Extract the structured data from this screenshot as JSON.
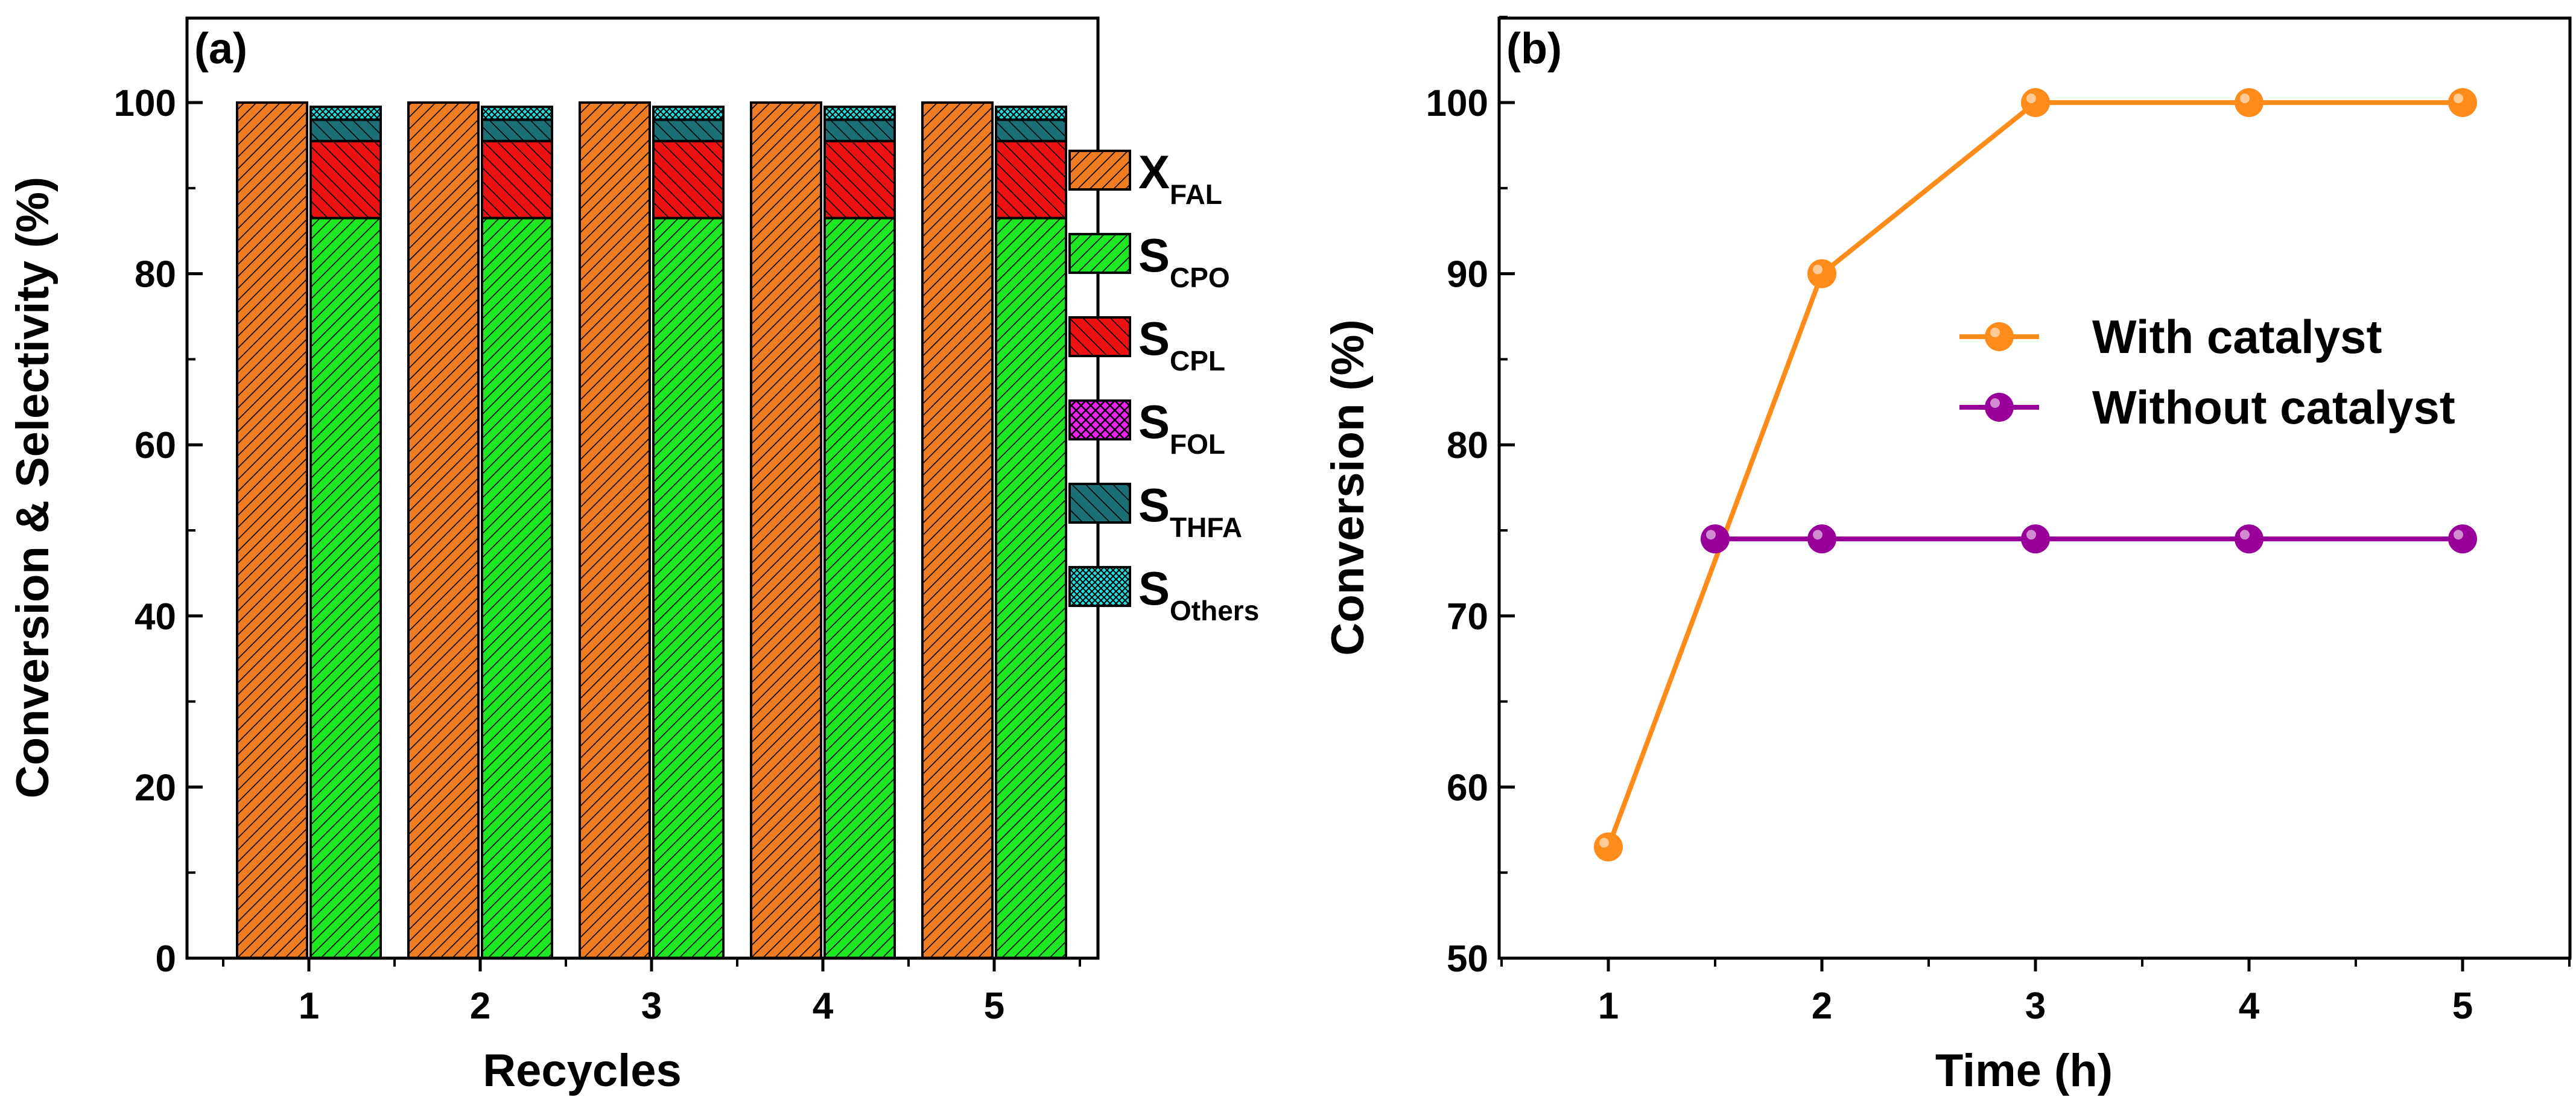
{
  "chart_data": [
    {
      "panel_label": "(a)",
      "type": "bar",
      "xlabel": "Recycles",
      "ylabel": "Conversion & Selectivity (%)",
      "ylim": [
        0,
        110
      ],
      "yticks": [
        "0",
        "20",
        "40",
        "60",
        "80",
        "100"
      ],
      "categories": [
        "1",
        "2",
        "3",
        "4",
        "5"
      ],
      "conversion": {
        "name": "X",
        "sub": "FAL",
        "values": [
          100,
          100,
          100,
          100,
          100
        ]
      },
      "selectivity": [
        {
          "name": "S",
          "sub": "CPO",
          "values": [
            86.5,
            86.5,
            86.5,
            86.5,
            86.5
          ]
        },
        {
          "name": "S",
          "sub": "CPL",
          "values": [
            9.0,
            9.0,
            9.0,
            9.0,
            9.0
          ]
        },
        {
          "name": "S",
          "sub": "FOL",
          "values": [
            0,
            0,
            0,
            0,
            0
          ]
        },
        {
          "name": "S",
          "sub": "THFA",
          "values": [
            2.5,
            2.5,
            2.5,
            2.5,
            2.5
          ]
        },
        {
          "name": "S",
          "sub": "Others",
          "values": [
            1.5,
            1.5,
            1.5,
            1.5,
            1.5
          ]
        }
      ],
      "colors": {
        "X_FAL": "#f07c22",
        "S_CPO": "#1ee822",
        "S_CPL": "#ee1111",
        "S_FOL": "#ee22ee",
        "S_THFA": "#1b6f76",
        "S_Others": "#22dddd"
      },
      "legend_position": "right"
    },
    {
      "panel_label": "(b)",
      "type": "line",
      "xlabel": "Time (h)",
      "ylabel": "Conversion (%)",
      "xlim": [
        0.5,
        5.6
      ],
      "ylim": [
        50,
        105
      ],
      "xticks": [
        "1",
        "2",
        "3",
        "4",
        "5"
      ],
      "yticks": [
        "50",
        "60",
        "70",
        "80",
        "90",
        "100"
      ],
      "series": [
        {
          "name": "With catalyst",
          "x": [
            1,
            2,
            3,
            4,
            5
          ],
          "y": [
            56.5,
            90,
            100,
            100,
            100
          ],
          "color": "#ff8c1a"
        },
        {
          "name": "Without catalyst",
          "x": [
            1.5,
            2,
            3,
            4,
            5
          ],
          "y": [
            74.5,
            74.5,
            74.5,
            74.5,
            74.5
          ],
          "color": "#990099"
        }
      ],
      "legend_position": "upper-right"
    }
  ]
}
